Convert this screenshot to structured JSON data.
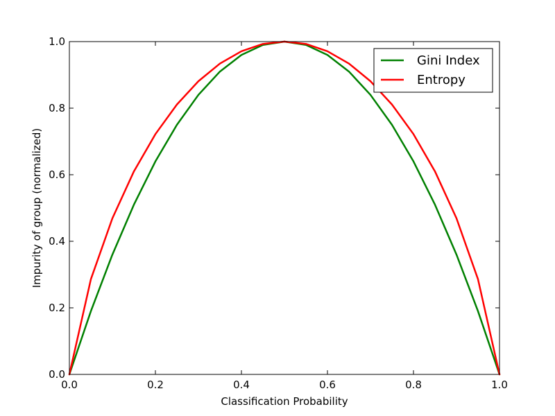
{
  "chart_data": {
    "type": "line",
    "xlabel": "Classification Probability",
    "ylabel": "Impurity of group (normalized)",
    "xlim": [
      0.0,
      1.0
    ],
    "ylim": [
      0.0,
      1.0
    ],
    "xticks": [
      "0.0",
      "0.2",
      "0.4",
      "0.6",
      "0.8",
      "1.0"
    ],
    "yticks": [
      "0.0",
      "0.2",
      "0.4",
      "0.6",
      "0.8",
      "1.0"
    ],
    "grid": false,
    "legend_position": "top-right",
    "x": [
      0.0,
      0.05,
      0.1,
      0.15,
      0.2,
      0.25,
      0.3,
      0.35,
      0.4,
      0.45,
      0.5,
      0.55,
      0.6,
      0.65,
      0.7,
      0.75,
      0.8,
      0.85,
      0.9,
      0.95,
      1.0
    ],
    "series": [
      {
        "name": "Gini Index",
        "color": "#008000",
        "values": [
          0.0,
          0.19,
          0.36,
          0.51,
          0.64,
          0.75,
          0.84,
          0.91,
          0.96,
          0.99,
          1.0,
          0.99,
          0.96,
          0.91,
          0.84,
          0.75,
          0.64,
          0.51,
          0.36,
          0.19,
          0.0
        ]
      },
      {
        "name": "Entropy",
        "color": "#ff0000",
        "values": [
          0.0,
          0.286,
          0.469,
          0.61,
          0.722,
          0.811,
          0.881,
          0.934,
          0.971,
          0.993,
          1.0,
          0.993,
          0.971,
          0.934,
          0.881,
          0.811,
          0.722,
          0.61,
          0.469,
          0.286,
          0.0
        ]
      }
    ]
  }
}
